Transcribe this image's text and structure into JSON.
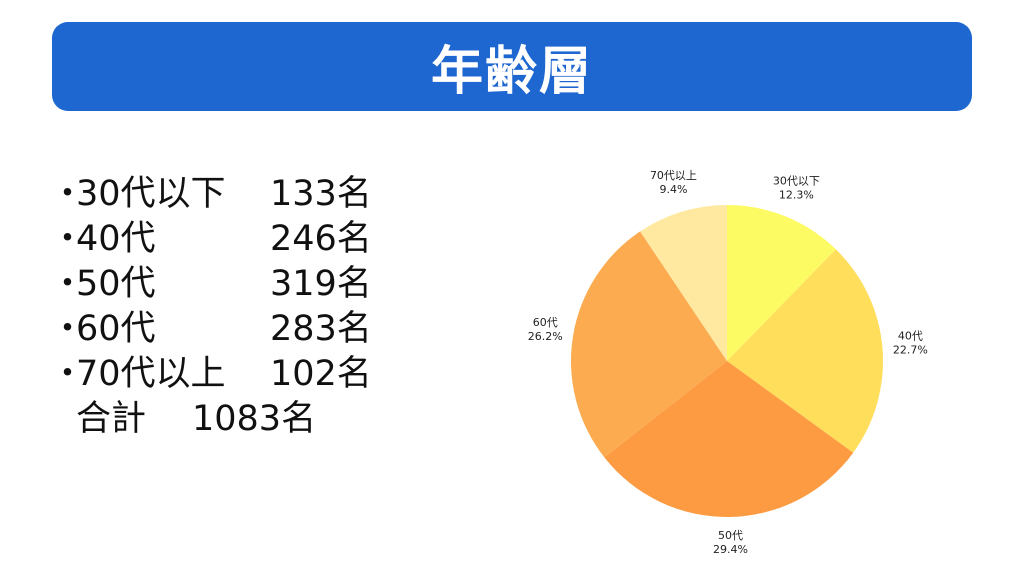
{
  "title": "年齢層",
  "list": {
    "bullet": "・",
    "items": [
      {
        "label": "30代以下",
        "count": "133名"
      },
      {
        "label": "40代",
        "count": "246名"
      },
      {
        "label": "50代",
        "count": "319名"
      },
      {
        "label": "60代",
        "count": "283名"
      },
      {
        "label": "70代以上",
        "count": "102名"
      }
    ],
    "total_label": "合計",
    "total_value": "1083名"
  },
  "colors": {
    "banner": "#1e66d0",
    "banner_text": "#ffffff"
  },
  "chart_data": {
    "type": "pie",
    "categories": [
      "30代以下",
      "40代",
      "50代",
      "60代",
      "70代以上"
    ],
    "values": [
      12.3,
      22.7,
      29.4,
      26.2,
      9.4
    ],
    "value_labels": [
      "12.3%",
      "22.7%",
      "29.4%",
      "26.2%",
      "9.4%"
    ],
    "colors": [
      "#fdfb63",
      "#ffde5c",
      "#fd9b42",
      "#fcab50",
      "#ffe9a0"
    ],
    "start": "12 o'clock",
    "direction": "clockwise",
    "legend": "none"
  }
}
